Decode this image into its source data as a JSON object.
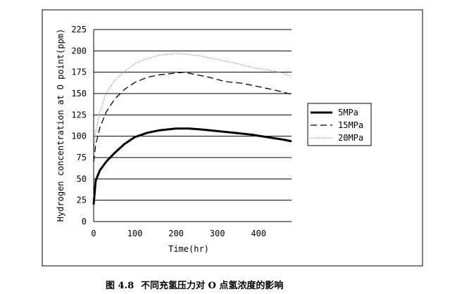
{
  "chart_data": {
    "type": "line",
    "title": "",
    "xlabel": "Time(hr)",
    "ylabel": "Hydrogen concentration at O point(ppm)",
    "xlim": [
      0,
      480
    ],
    "ylim": [
      0,
      225
    ],
    "xticks": [
      0,
      100,
      200,
      300,
      400
    ],
    "yticks": [
      0,
      25,
      50,
      75,
      100,
      125,
      150,
      175,
      200,
      225
    ],
    "grid": "horizontal",
    "legend_position": "right",
    "series": [
      {
        "name": "5MPa",
        "style": "solid-thick",
        "color": "#000000",
        "x": [
          0,
          5,
          15,
          30,
          50,
          75,
          100,
          130,
          160,
          200,
          230,
          260,
          300,
          340,
          380,
          420,
          460,
          480
        ],
        "y": [
          20,
          48,
          60,
          70,
          80,
          91,
          99,
          104,
          107,
          109,
          109,
          108,
          106,
          104,
          102,
          99,
          96,
          94
        ]
      },
      {
        "name": "15MPa",
        "style": "dashed",
        "color": "#000000",
        "x": [
          0,
          5,
          15,
          30,
          50,
          75,
          100,
          130,
          160,
          200,
          220,
          240,
          280,
          320,
          360,
          400,
          440,
          480
        ],
        "y": [
          70,
          90,
          110,
          128,
          143,
          155,
          163,
          169,
          172,
          174,
          175,
          173,
          169,
          164,
          162,
          158,
          154,
          149
        ]
      },
      {
        "name": "20MPa",
        "style": "dotted",
        "color": "#888888",
        "x": [
          0,
          5,
          15,
          30,
          50,
          75,
          100,
          130,
          160,
          200,
          230,
          260,
          300,
          340,
          380,
          420,
          460,
          480
        ],
        "y": [
          80,
          105,
          128,
          150,
          165,
          176,
          185,
          191,
          195,
          197,
          196,
          194,
          190,
          186,
          181,
          178,
          174,
          170
        ]
      }
    ]
  },
  "caption": {
    "label": "图 4.8",
    "text": "不同充氢压力对 O 点氢浓度的影响"
  }
}
